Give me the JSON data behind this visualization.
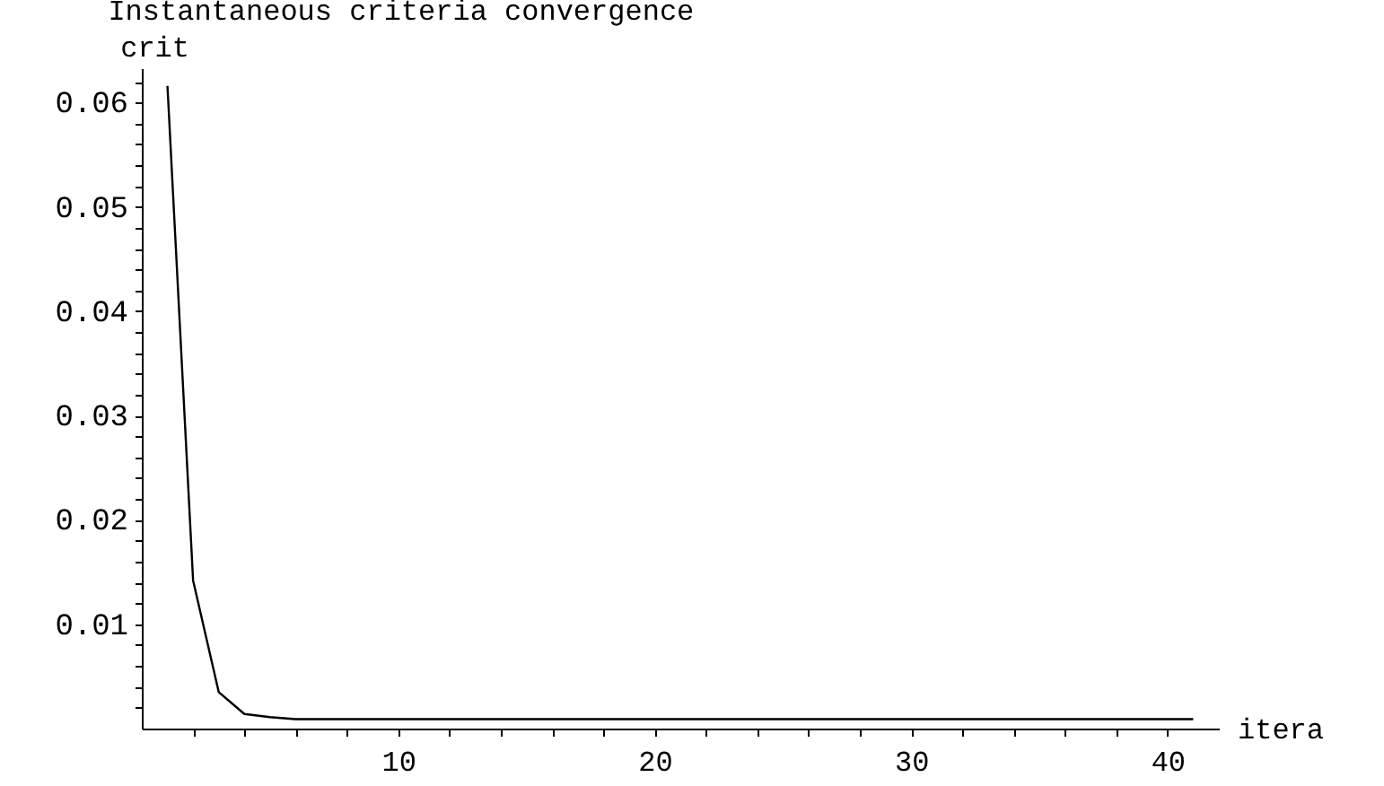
{
  "chart_data": {
    "type": "line",
    "title": "Instantaneous criteria convergence",
    "xlabel": "itera",
    "ylabel": "crit",
    "x": [
      1,
      2,
      3,
      4,
      5,
      6,
      7,
      8,
      9,
      10,
      11,
      12,
      13,
      14,
      15,
      16,
      17,
      18,
      19,
      20,
      21,
      22,
      23,
      24,
      25,
      26,
      27,
      28,
      29,
      30,
      31,
      32,
      33,
      34,
      35,
      36,
      37,
      38,
      39,
      40,
      41
    ],
    "series": [
      {
        "color": "#000000",
        "values": [
          0.0616,
          0.0142,
          0.0035,
          0.0014,
          0.0011,
          0.0009,
          0.0009,
          0.0009,
          0.0009,
          0.0009,
          0.0009,
          0.0009,
          0.0009,
          0.0009,
          0.0009,
          0.0009,
          0.0009,
          0.0009,
          0.0009,
          0.0009,
          0.0009,
          0.0009,
          0.0009,
          0.0009,
          0.0009,
          0.0009,
          0.0009,
          0.0009,
          0.0009,
          0.0009,
          0.0009,
          0.0009,
          0.0009,
          0.0009,
          0.0009,
          0.0009,
          0.0009,
          0.0009,
          0.0009,
          0.0009,
          0.0009
        ]
      }
    ],
    "xlim": [
      0,
      42
    ],
    "ylim": [
      0,
      0.0633
    ],
    "xticks": [
      {
        "value": 2,
        "label": null
      },
      {
        "value": 4,
        "label": null
      },
      {
        "value": 6,
        "label": null
      },
      {
        "value": 8,
        "label": null
      },
      10,
      {
        "value": 12,
        "label": null
      },
      {
        "value": 14,
        "label": null
      },
      {
        "value": 16,
        "label": null
      },
      {
        "value": 18,
        "label": null
      },
      20,
      {
        "value": 22,
        "label": null
      },
      {
        "value": 24,
        "label": null
      },
      {
        "value": 26,
        "label": null
      },
      {
        "value": 28,
        "label": null
      },
      30,
      {
        "value": 32,
        "label": null
      },
      {
        "value": 34,
        "label": null
      },
      {
        "value": 36,
        "label": null
      },
      {
        "value": 38,
        "label": null
      },
      40
    ],
    "yticks": [
      {
        "value": 0.002,
        "label": null
      },
      {
        "value": 0.004,
        "label": null
      },
      {
        "value": 0.006,
        "label": null
      },
      {
        "value": 0.008,
        "label": null
      },
      0.01,
      {
        "value": 0.012,
        "label": null
      },
      {
        "value": 0.014,
        "label": null
      },
      {
        "value": 0.016,
        "label": null
      },
      {
        "value": 0.018,
        "label": null
      },
      0.02,
      {
        "value": 0.022,
        "label": null
      },
      {
        "value": 0.024,
        "label": null
      },
      {
        "value": 0.026,
        "label": null
      },
      {
        "value": 0.028,
        "label": null
      },
      0.03,
      {
        "value": 0.032,
        "label": null
      },
      {
        "value": 0.034,
        "label": null
      },
      {
        "value": 0.036,
        "label": null
      },
      {
        "value": 0.038,
        "label": null
      },
      0.04,
      {
        "value": 0.042,
        "label": null
      },
      {
        "value": 0.044,
        "label": null
      },
      {
        "value": 0.046,
        "label": null
      },
      {
        "value": 0.048,
        "label": null
      },
      0.05,
      {
        "value": 0.052,
        "label": null
      },
      {
        "value": 0.054,
        "label": null
      },
      {
        "value": 0.056,
        "label": null
      },
      {
        "value": 0.058,
        "label": null
      },
      0.06,
      {
        "value": 0.062,
        "label": null
      }
    ],
    "grid": false,
    "marker": "none",
    "line_style": "solid"
  }
}
